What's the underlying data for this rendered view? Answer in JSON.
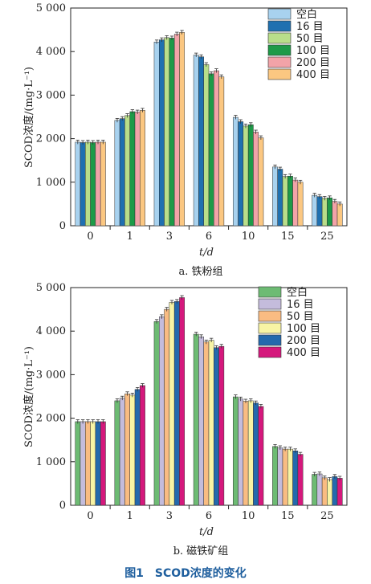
{
  "figure_title": "图1　SCOD浓度的变化",
  "chart_data": [
    {
      "type": "bar",
      "caption": "a. 铁粉组",
      "xlabel": "t/d",
      "ylabel": "SCOD浓度/(mg·L⁻¹)",
      "ylim": [
        0,
        5000
      ],
      "yticks": [
        0,
        1000,
        2000,
        3000,
        4000,
        5000
      ],
      "ytick_labels": [
        "0",
        "1 000",
        "2 000",
        "3 000",
        "4 000",
        "5 000"
      ],
      "categories": [
        "0",
        "1",
        "3",
        "6",
        "10",
        "15",
        "25"
      ],
      "legend_position": "top-right",
      "error_bars": true,
      "series": [
        {
          "name": "空白",
          "color": "#a8d2ef",
          "values": [
            1920,
            2420,
            4220,
            3920,
            2490,
            1350,
            700
          ]
        },
        {
          "name": "16 目",
          "color": "#1f70b0",
          "values": [
            1910,
            2460,
            4270,
            3880,
            2390,
            1300,
            670
          ]
        },
        {
          "name": "50 目",
          "color": "#b9de8a",
          "values": [
            1920,
            2530,
            4320,
            3700,
            2290,
            1130,
            630
          ]
        },
        {
          "name": "100 目",
          "color": "#1e9a48",
          "values": [
            1910,
            2620,
            4310,
            3490,
            2320,
            1140,
            640
          ]
        },
        {
          "name": "200 目",
          "color": "#f2a3a8",
          "values": [
            1920,
            2610,
            4400,
            3560,
            2150,
            1050,
            560
          ]
        },
        {
          "name": "400 目",
          "color": "#fbc781",
          "values": [
            1920,
            2650,
            4440,
            3420,
            2020,
            1000,
            500
          ]
        }
      ]
    },
    {
      "type": "bar",
      "caption": "b. 磁铁矿组",
      "xlabel": "t/d",
      "ylabel": "SCOD浓度/(mg·L⁻¹)",
      "ylim": [
        0,
        5000
      ],
      "yticks": [
        0,
        1000,
        2000,
        3000,
        4000,
        5000
      ],
      "ytick_labels": [
        "0",
        "1 000",
        "2 000",
        "3 000",
        "4 000",
        "5 000"
      ],
      "categories": [
        "0",
        "1",
        "3",
        "6",
        "10",
        "15",
        "25"
      ],
      "legend_position": "top-right",
      "error_bars": true,
      "series": [
        {
          "name": "空白",
          "color": "#6dbb73",
          "values": [
            1920,
            2400,
            4220,
            3930,
            2490,
            1350,
            710
          ]
        },
        {
          "name": "16 目",
          "color": "#c4bcdc",
          "values": [
            1920,
            2460,
            4330,
            3870,
            2440,
            1320,
            720
          ]
        },
        {
          "name": "50 目",
          "color": "#f9bc82",
          "values": [
            1920,
            2560,
            4500,
            3750,
            2390,
            1290,
            630
          ]
        },
        {
          "name": "100 目",
          "color": "#f8f4a4",
          "values": [
            1920,
            2530,
            4660,
            3790,
            2400,
            1290,
            590
          ]
        },
        {
          "name": "200 目",
          "color": "#2369ad",
          "values": [
            1920,
            2660,
            4680,
            3620,
            2350,
            1250,
            660
          ]
        },
        {
          "name": "400 目",
          "color": "#d5187c",
          "values": [
            1920,
            2750,
            4770,
            3650,
            2270,
            1170,
            620
          ]
        }
      ]
    }
  ]
}
